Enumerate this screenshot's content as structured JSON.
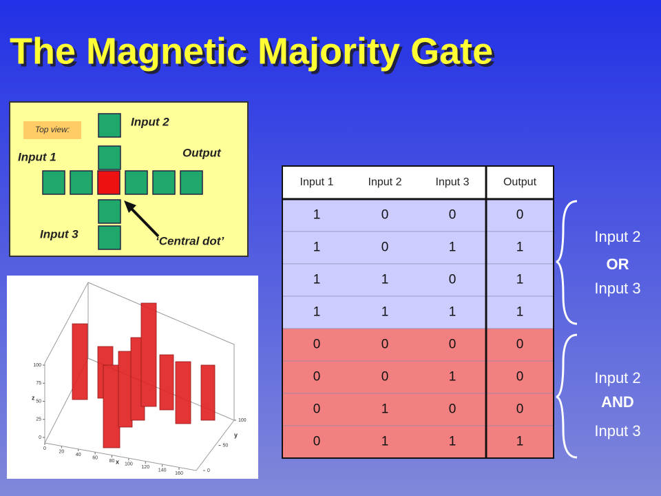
{
  "title": "The Magnetic Majority Gate",
  "diagram": {
    "top_view": "Top view:",
    "input1": "Input 1",
    "input2": "Input 2",
    "input3": "Input 3",
    "output": "Output",
    "central_dot": "‘Central dot’"
  },
  "table": {
    "headers": [
      "Input 1",
      "Input 2",
      "Input 3",
      "Output"
    ],
    "rows": [
      [
        1,
        0,
        0,
        0
      ],
      [
        1,
        0,
        1,
        1
      ],
      [
        1,
        1,
        0,
        1
      ],
      [
        1,
        1,
        1,
        1
      ],
      [
        0,
        0,
        0,
        0
      ],
      [
        0,
        0,
        1,
        0
      ],
      [
        0,
        1,
        0,
        0
      ],
      [
        0,
        1,
        1,
        1
      ]
    ]
  },
  "braces": [
    [
      "Input 2",
      "OR",
      "Input 3"
    ],
    [
      "Input 2",
      "AND",
      "Input 3"
    ]
  ],
  "plot": {
    "z_label": "z",
    "x_label": "x",
    "y_label": "y",
    "z_ticks": [
      0,
      25,
      50,
      75,
      100
    ],
    "x_ticks": [
      0,
      20,
      40,
      60,
      80,
      100,
      120,
      140,
      160
    ],
    "y_ticks": [
      0,
      50,
      100
    ]
  }
}
